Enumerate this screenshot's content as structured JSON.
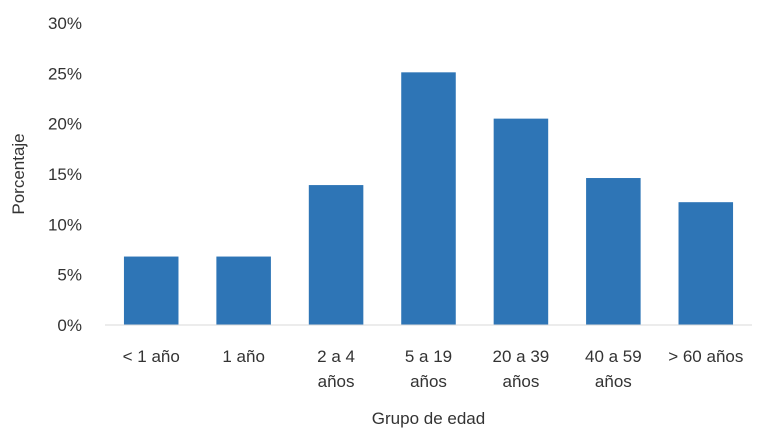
{
  "chart_data": {
    "type": "bar",
    "categories": [
      [
        "< 1 año"
      ],
      [
        "1 año"
      ],
      [
        "2 a 4",
        "años"
      ],
      [
        "5 a 19",
        "años"
      ],
      [
        "20 a 39",
        "años"
      ],
      [
        "40 a 59",
        "años"
      ],
      [
        "> 60 años"
      ]
    ],
    "values": [
      6.8,
      6.8,
      13.9,
      25.1,
      20.5,
      14.6,
      12.2
    ],
    "xlabel": "Grupo de edad",
    "ylabel": "Porcentaje",
    "ylim": [
      0,
      30
    ],
    "yticks": [
      {
        "value": 0,
        "label": "0%"
      },
      {
        "value": 5,
        "label": "5%"
      },
      {
        "value": 10,
        "label": "10%"
      },
      {
        "value": 15,
        "label": "15%"
      },
      {
        "value": 20,
        "label": "20%"
      },
      {
        "value": 25,
        "label": "25%"
      },
      {
        "value": 30,
        "label": "30%"
      }
    ],
    "grid": false,
    "legend": "none",
    "bar_color": "#2E75B6",
    "axis_color": "#D9D9D9"
  }
}
